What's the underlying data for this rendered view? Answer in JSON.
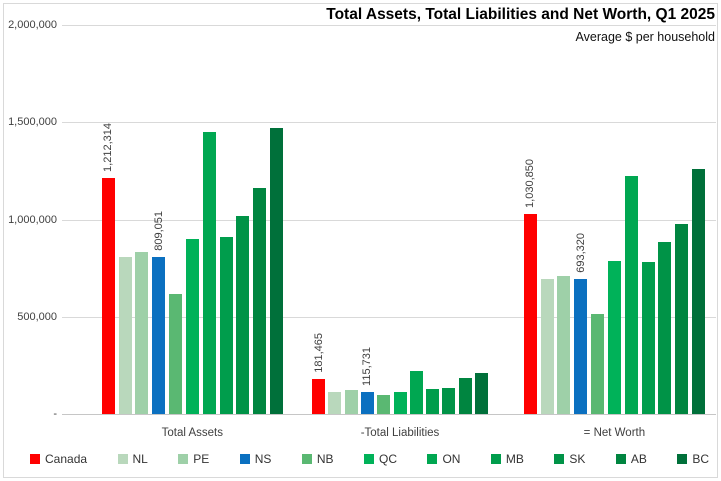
{
  "chart_data": {
    "type": "bar",
    "title": "Total Assets, Total Liabilities and Net Worth, Q1 2025",
    "subtitle": "Average $ per household",
    "categories": [
      "Total Assets",
      "-Total Liabilities",
      "= Net Worth"
    ],
    "series": [
      {
        "name": "Canada",
        "color": "#ff0000",
        "values": [
          1212314,
          181465,
          1030850
        ]
      },
      {
        "name": "NL",
        "color": "#b9d8bc",
        "values": [
          805000,
          112000,
          693000
        ]
      },
      {
        "name": "PE",
        "color": "#9ed0a8",
        "values": [
          835000,
          125000,
          710000
        ]
      },
      {
        "name": "NS",
        "color": "#0b70c0",
        "values": [
          809051,
          115731,
          693320
        ]
      },
      {
        "name": "NB",
        "color": "#5ab872",
        "values": [
          615000,
          100000,
          515000
        ]
      },
      {
        "name": "QC",
        "color": "#00b259",
        "values": [
          900000,
          112000,
          788000
        ]
      },
      {
        "name": "ON",
        "color": "#00a751",
        "values": [
          1448000,
          222000,
          1226000
        ]
      },
      {
        "name": "MB",
        "color": "#009d4c",
        "values": [
          912000,
          130000,
          782000
        ]
      },
      {
        "name": "SK",
        "color": "#009347",
        "values": [
          1020000,
          133000,
          887000
        ]
      },
      {
        "name": "AB",
        "color": "#008540",
        "values": [
          1162000,
          185000,
          977000
        ]
      },
      {
        "name": "BC",
        "color": "#00703a",
        "values": [
          1472000,
          210000,
          1262000
        ]
      }
    ],
    "data_labels": [
      {
        "group": 0,
        "series": "Canada",
        "text": "1,212,314"
      },
      {
        "group": 0,
        "series": "NS",
        "text": "809,051"
      },
      {
        "group": 1,
        "series": "Canada",
        "text": "181,465"
      },
      {
        "group": 1,
        "series": "NS",
        "text": "115,731"
      },
      {
        "group": 2,
        "series": "Canada",
        "text": "1,030,850"
      },
      {
        "group": 2,
        "series": "NS",
        "text": "693,320"
      }
    ],
    "ylim": [
      0,
      2000000
    ],
    "y_ticks": [
      "2,000,000",
      "1,500,000",
      "1,000,000",
      "500,000",
      "-"
    ],
    "y_tick_values": [
      2000000,
      1500000,
      1000000,
      500000,
      0
    ],
    "grid": true,
    "legend_position": "bottom"
  }
}
